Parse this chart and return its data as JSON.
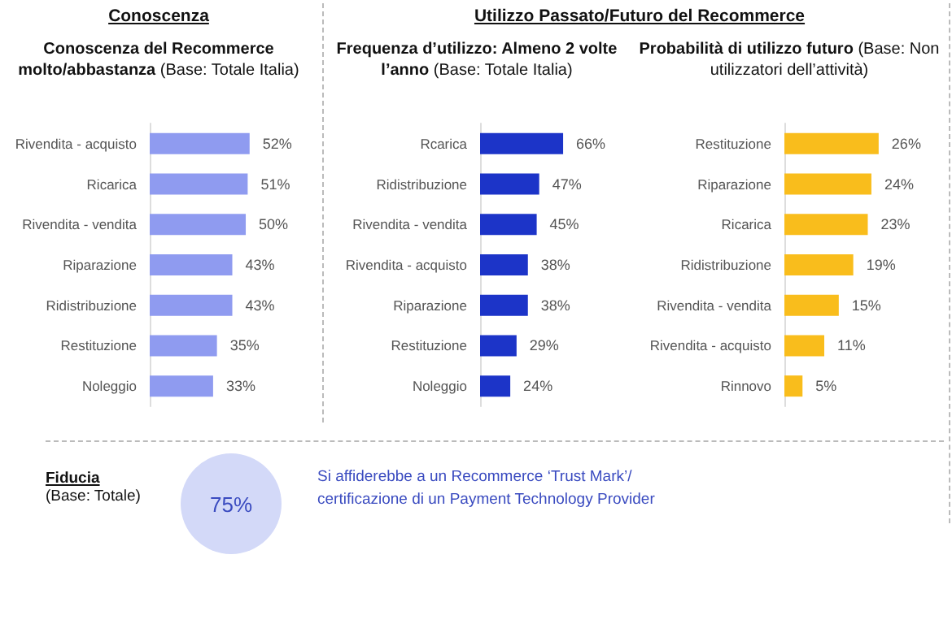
{
  "chart_data": [
    {
      "type": "bar",
      "orientation": "horizontal",
      "annotations": [
        "Conoscenza"
      ],
      "title": "Conoscenza del Recommerce molto/abbastanza",
      "subtitle": "(Base: Totale Italia)",
      "categories": [
        "Rivendita - acquisto",
        "Ricarica",
        "Rivendita - vendita",
        "Riparazione",
        "Ridistribuzione",
        "Restituzione",
        "Noleggio"
      ],
      "values": [
        52,
        51,
        50,
        43,
        43,
        35,
        33
      ],
      "color": "#8f9bf0",
      "value_labels": [
        "52%",
        "51%",
        "50%",
        "43%",
        "43%",
        "35%",
        "33%"
      ]
    },
    {
      "type": "bar",
      "orientation": "horizontal",
      "annotations": [
        "Utilizzo Passato/Futuro del Recommerce"
      ],
      "title": "Frequenza d’utilizzo: Almeno 2 volte l’anno",
      "subtitle": "(Base: Totale Italia)",
      "categories": [
        "Rcarica",
        "Ridistribuzione",
        "Rivendita - vendita",
        "Rivendita - acquisto",
        "Riparazione",
        "Restituzione",
        "Noleggio"
      ],
      "values": [
        66,
        47,
        45,
        38,
        38,
        29,
        24
      ],
      "color": "#1c34c8",
      "value_labels": [
        "66%",
        "47%",
        "45%",
        "38%",
        "38%",
        "29%",
        "24%"
      ]
    },
    {
      "type": "bar",
      "orientation": "horizontal",
      "title": "Probabilità di utilizzo futuro",
      "subtitle": "(Base: Non utilizzatori dell’attività)",
      "categories": [
        "Restituzione",
        "Riparazione",
        "Ricarica",
        "Ridistribuzione",
        "Rivendita - vendita",
        "Rivendita - acquisto",
        "Rinnovo"
      ],
      "values": [
        26,
        24,
        23,
        19,
        15,
        11,
        5
      ],
      "color": "#f9bd1c",
      "value_labels": [
        "26%",
        "24%",
        "23%",
        "19%",
        "15%",
        "11%",
        "5%"
      ]
    },
    {
      "type": "other",
      "title": "Fiducia",
      "subtitle": "(Base: Totale)",
      "values": [
        75
      ],
      "value_labels": [
        "75%"
      ],
      "color": "#d3d9f8",
      "annotations": [
        "Si affiderebbe a un Recommerce ‘Trust Mark’/ certificazione di un Payment Technology Provider"
      ]
    }
  ]
}
